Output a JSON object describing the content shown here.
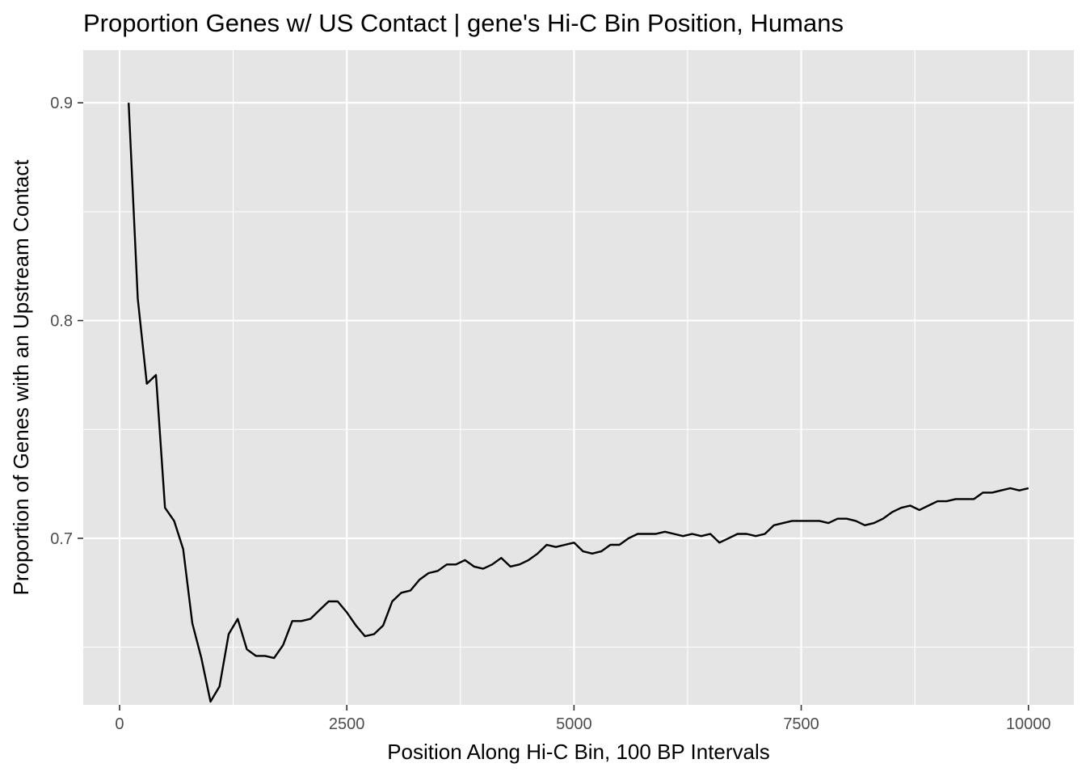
{
  "chart_data": {
    "type": "line",
    "title": "Proportion Genes w/ US Contact | gene's Hi-C Bin Position, Humans",
    "xlabel": "Position Along Hi-C Bin, 100 BP Intervals",
    "ylabel": "Proportion of Genes with an Upstream Contact",
    "xlim": [
      -400,
      10500
    ],
    "ylim": [
      0.6235,
      0.9242
    ],
    "x_major_ticks": [
      0,
      2500,
      5000,
      7500,
      10000
    ],
    "x_tick_labels": [
      "0",
      "2500",
      "5000",
      "7500",
      "10000"
    ],
    "x_minor_ticks": [
      1250,
      3750,
      6250,
      8750
    ],
    "y_major_ticks": [
      0.7,
      0.8,
      0.9
    ],
    "y_tick_labels": [
      "0.7",
      "0.8",
      "0.9"
    ],
    "y_minor_ticks": [
      0.65,
      0.75,
      0.85
    ],
    "grid": true,
    "colors": {
      "panel": "#e5e5e5",
      "grid": "#ffffff",
      "line": "#000000",
      "tick_text": "#4d4d4d"
    },
    "series": [
      {
        "name": "proportion",
        "x": [
          100,
          200,
          300,
          400,
          500,
          600,
          700,
          800,
          900,
          1000,
          1100,
          1200,
          1300,
          1400,
          1500,
          1600,
          1700,
          1800,
          1900,
          2000,
          2100,
          2200,
          2300,
          2400,
          2500,
          2600,
          2700,
          2800,
          2900,
          3000,
          3100,
          3200,
          3300,
          3400,
          3500,
          3600,
          3700,
          3800,
          3900,
          4000,
          4100,
          4200,
          4300,
          4400,
          4500,
          4600,
          4700,
          4800,
          4900,
          5000,
          5100,
          5200,
          5300,
          5400,
          5500,
          5600,
          5700,
          5800,
          5900,
          6000,
          6100,
          6200,
          6300,
          6400,
          6500,
          6600,
          6700,
          6800,
          6900,
          7000,
          7100,
          7200,
          7300,
          7400,
          7500,
          7600,
          7700,
          7800,
          7900,
          8000,
          8100,
          8200,
          8300,
          8400,
          8500,
          8600,
          8700,
          8800,
          8900,
          9000,
          9100,
          9200,
          9300,
          9400,
          9500,
          9600,
          9700,
          9800,
          9900,
          10000
        ],
        "y": [
          0.9,
          0.81,
          0.771,
          0.775,
          0.714,
          0.708,
          0.695,
          0.661,
          0.645,
          0.625,
          0.632,
          0.656,
          0.663,
          0.649,
          0.646,
          0.646,
          0.645,
          0.651,
          0.662,
          0.662,
          0.663,
          0.667,
          0.671,
          0.671,
          0.666,
          0.66,
          0.655,
          0.656,
          0.66,
          0.671,
          0.675,
          0.676,
          0.681,
          0.684,
          0.685,
          0.688,
          0.688,
          0.69,
          0.687,
          0.686,
          0.688,
          0.691,
          0.687,
          0.688,
          0.69,
          0.693,
          0.697,
          0.696,
          0.697,
          0.698,
          0.694,
          0.693,
          0.694,
          0.697,
          0.697,
          0.7,
          0.702,
          0.702,
          0.702,
          0.703,
          0.702,
          0.701,
          0.702,
          0.701,
          0.702,
          0.698,
          0.7,
          0.702,
          0.702,
          0.701,
          0.702,
          0.706,
          0.707,
          0.708,
          0.708,
          0.708,
          0.708,
          0.707,
          0.709,
          0.709,
          0.708,
          0.706,
          0.707,
          0.709,
          0.712,
          0.714,
          0.715,
          0.713,
          0.715,
          0.717,
          0.717,
          0.718,
          0.718,
          0.718,
          0.721,
          0.721,
          0.722,
          0.723,
          0.722,
          0.723
        ]
      }
    ]
  }
}
